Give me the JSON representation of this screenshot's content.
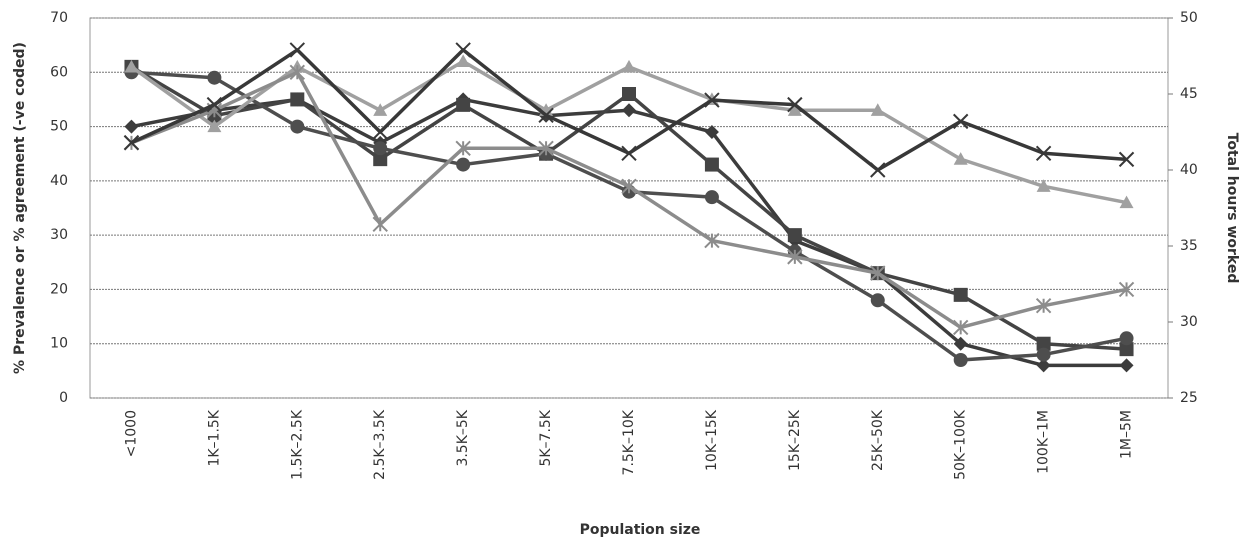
{
  "chart_data": {
    "type": "line",
    "x_label": "Population size",
    "y_label": "% Prevalence or % agreement (-ve coded)",
    "y2_label": "Total hours worked",
    "categories": [
      "<1000",
      "1K–1.5K",
      "1.5K–2.5K",
      "2.5K–3.5K",
      "3.5K–5K",
      "5K–7.5K",
      "7.5K–10K",
      "10K–15K",
      "15K–25K",
      "25K–50K",
      "50K–100K",
      "100K–1M",
      "1M–5M"
    ],
    "ylim": [
      0,
      70
    ],
    "yticks": [
      0,
      10,
      20,
      30,
      40,
      50,
      60,
      70
    ],
    "y2lim": [
      25,
      50
    ],
    "y2ticks": [
      25,
      30,
      35,
      40,
      45,
      50
    ],
    "grid": true,
    "series": [
      {
        "color": "#3c3c3c",
        "marker": "diamond",
        "values": [
          50,
          53,
          55,
          47,
          55,
          52,
          53,
          49,
          29,
          23,
          10,
          6,
          6
        ]
      },
      {
        "color": "#444444",
        "marker": "square",
        "values": [
          61,
          52,
          55,
          44,
          54,
          45,
          56,
          43,
          30,
          23,
          19,
          10,
          9
        ]
      },
      {
        "color": "#4e4e4e",
        "marker": "circle",
        "values": [
          60,
          59,
          50,
          46,
          43,
          45,
          38,
          37,
          27,
          18,
          7,
          8,
          11
        ]
      },
      {
        "color": "#a0a0a0",
        "marker": "triangle",
        "values": [
          61,
          50,
          61,
          53,
          62,
          53,
          61,
          55,
          53,
          53,
          44,
          39,
          36
        ]
      },
      {
        "color": "#8c8c8c",
        "marker": "star",
        "values": [
          47,
          53,
          60,
          32,
          46,
          46,
          39,
          29,
          26,
          23,
          13,
          17,
          20
        ]
      },
      {
        "color": "#383838",
        "marker": "x",
        "axis": "y2",
        "values": [
          41.8,
          44.3,
          47.9,
          42.5,
          47.9,
          43.6,
          41.1,
          44.6,
          44.3,
          40.0,
          43.2,
          41.1,
          40.7
        ]
      }
    ]
  }
}
